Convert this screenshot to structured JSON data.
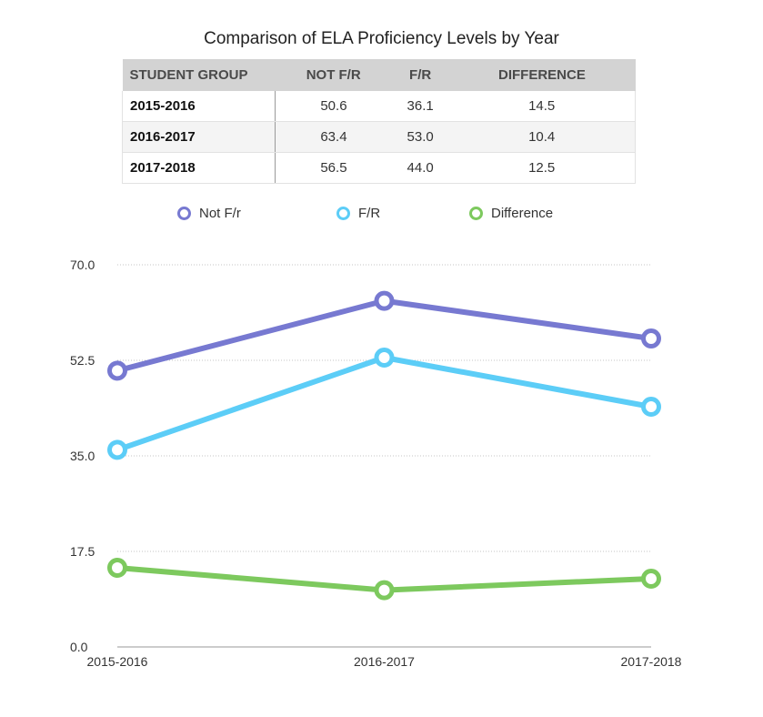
{
  "chart_data": {
    "type": "line",
    "title": "Comparison of ELA Proficiency Levels by Year",
    "table": {
      "headers": [
        "STUDENT GROUP",
        "NOT F/R",
        "F/R",
        "DIFFERENCE"
      ],
      "rows": [
        [
          "2015-2016",
          "50.6",
          "36.1",
          "14.5"
        ],
        [
          "2016-2017",
          "63.4",
          "53.0",
          "10.4"
        ],
        [
          "2017-2018",
          "56.5",
          "44.0",
          "12.5"
        ]
      ]
    },
    "x": [
      "2015-2016",
      "2016-2017",
      "2017-2018"
    ],
    "series": [
      {
        "name": "Not F/r",
        "values": [
          50.6,
          63.4,
          56.5
        ],
        "color": "#7779d1"
      },
      {
        "name": "F/R",
        "values": [
          36.1,
          53.0,
          44.0
        ],
        "color": "#5ccdf7"
      },
      {
        "name": "Difference",
        "values": [
          14.5,
          10.4,
          12.5
        ],
        "color": "#7dc95e"
      }
    ],
    "yticks": [
      "0.0",
      "17.5",
      "35.0",
      "52.5",
      "70.0"
    ],
    "ylim": [
      0,
      70
    ],
    "grid": true,
    "legend_position": "top"
  }
}
